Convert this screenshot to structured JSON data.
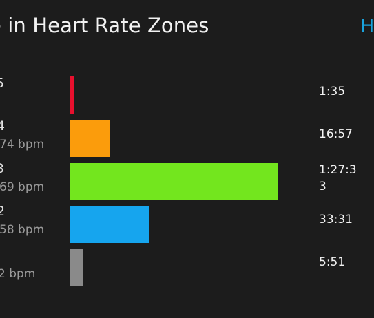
{
  "header": {
    "title": "e in Heart Rate Zones",
    "help_link": "H"
  },
  "zones": [
    {
      "name": "5",
      "range": "",
      "time": "1:35",
      "fraction": 0.018,
      "color": "#e8102e"
    },
    {
      "name": "4",
      "range": "74 bpm",
      "time": "16:57",
      "fraction": 0.19,
      "color": "#fb9c0c"
    },
    {
      "name": "3",
      "range": "69 bpm",
      "time": "1:27:3\n3",
      "fraction": 1.0,
      "color": "#73e61e"
    },
    {
      "name": "2",
      "range": "58 bpm",
      "time": "33:31",
      "fraction": 0.38,
      "color": "#16a5ee"
    },
    {
      "name": "",
      "range": "2 bpm",
      "time": "5:51",
      "fraction": 0.067,
      "color": "#8a8a8a"
    }
  ]
}
